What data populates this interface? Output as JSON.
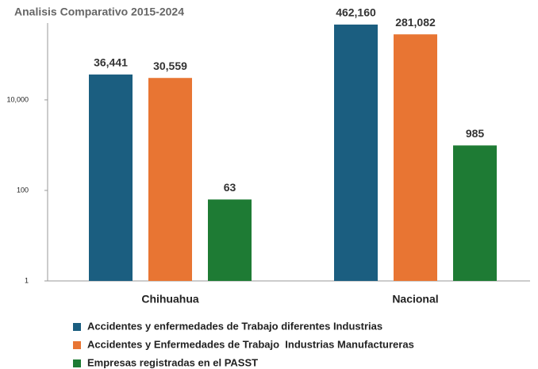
{
  "chart_data": {
    "type": "bar",
    "title": "Analisis Comparativo 2015-2024",
    "categories": [
      "Chihuahua",
      "Nacional"
    ],
    "series": [
      {
        "name": "Accidentes y enfermedades de Trabajo diferentes Industrias",
        "color": "#1b5e80",
        "values": [
          36441,
          462160
        ],
        "value_labels": [
          "36,441",
          "462,160"
        ]
      },
      {
        "name": "Accidentes y Enfermedades de Trabajo  Industrias Manufactureras",
        "color": "#e87533",
        "values": [
          30559,
          281082
        ],
        "value_labels": [
          "30,559",
          "281,082"
        ]
      },
      {
        "name": "Empresas registradas en el PASST",
        "color": "#1e7b34",
        "values": [
          63,
          985
        ],
        "value_labels": [
          "63",
          "985"
        ]
      }
    ],
    "ylim": [
      1,
      500000
    ],
    "log_scale": true,
    "yticks": [
      1,
      100,
      {
        "value": 10000,
        "label": "10,000"
      }
    ],
    "grid": false,
    "legend": "bottom"
  }
}
